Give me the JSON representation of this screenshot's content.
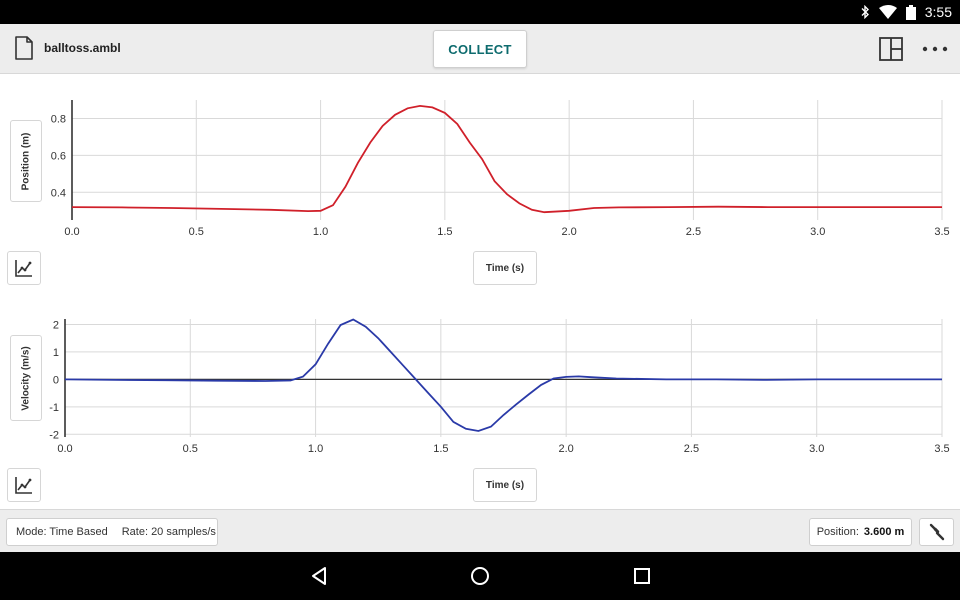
{
  "status_bar": {
    "time": "3:55",
    "icons": [
      "bluetooth-icon",
      "wifi-icon",
      "battery-icon"
    ]
  },
  "app_bar": {
    "file_name": "balltoss.ambl",
    "collect_label": "COLLECT",
    "icons": [
      "file-icon",
      "layout-icon",
      "more-options-icon"
    ]
  },
  "colors": {
    "position_series": "#d0202a",
    "velocity_series": "#2a3aa8",
    "accent": "#0d6b6e"
  },
  "chart_data": [
    {
      "type": "line",
      "ylabel": "Position (m)",
      "xlabel": "Time (s)",
      "xlim": [
        0.0,
        3.5
      ],
      "ylim": [
        0.25,
        0.9
      ],
      "x_ticks": [
        "0.0",
        "0.5",
        "1.0",
        "1.5",
        "2.0",
        "2.5",
        "3.0",
        "3.5"
      ],
      "y_ticks": [
        "0.4",
        "0.6",
        "0.8"
      ],
      "grid": true,
      "series": [
        {
          "color": "#d0202a",
          "x": [
            0.0,
            0.2,
            0.4,
            0.6,
            0.8,
            0.95,
            1.0,
            1.05,
            1.1,
            1.15,
            1.2,
            1.25,
            1.3,
            1.35,
            1.4,
            1.45,
            1.5,
            1.55,
            1.6,
            1.65,
            1.7,
            1.75,
            1.8,
            1.85,
            1.9,
            2.0,
            2.1,
            2.2,
            2.4,
            2.6,
            2.8,
            3.0,
            3.2,
            3.5
          ],
          "y": [
            0.32,
            0.318,
            0.315,
            0.31,
            0.305,
            0.298,
            0.3,
            0.33,
            0.43,
            0.56,
            0.67,
            0.76,
            0.82,
            0.855,
            0.868,
            0.86,
            0.83,
            0.77,
            0.67,
            0.58,
            0.46,
            0.39,
            0.34,
            0.305,
            0.292,
            0.3,
            0.315,
            0.318,
            0.32,
            0.322,
            0.32,
            0.32,
            0.32,
            0.32
          ]
        }
      ]
    },
    {
      "type": "line",
      "ylabel": "Velocity (m/s)",
      "xlabel": "Time (s)",
      "xlim": [
        0.0,
        3.5
      ],
      "ylim": [
        -2.1,
        2.2
      ],
      "x_ticks": [
        "0.0",
        "0.5",
        "1.0",
        "1.5",
        "2.0",
        "2.5",
        "3.0",
        "3.5"
      ],
      "y_ticks": [
        "2",
        "1",
        "0",
        "-1",
        "-2"
      ],
      "grid": true,
      "series": [
        {
          "color": "#2a3aa8",
          "x": [
            0.0,
            0.2,
            0.4,
            0.6,
            0.8,
            0.9,
            0.95,
            1.0,
            1.05,
            1.1,
            1.15,
            1.2,
            1.25,
            1.3,
            1.35,
            1.4,
            1.45,
            1.5,
            1.55,
            1.6,
            1.65,
            1.7,
            1.75,
            1.8,
            1.85,
            1.9,
            1.95,
            2.0,
            2.05,
            2.1,
            2.2,
            2.4,
            2.6,
            2.8,
            3.0,
            3.2,
            3.5
          ],
          "y": [
            0.0,
            -0.02,
            -0.03,
            -0.05,
            -0.06,
            -0.04,
            0.1,
            0.55,
            1.3,
            1.98,
            2.18,
            1.92,
            1.5,
            1.0,
            0.5,
            0.0,
            -0.5,
            -1.0,
            -1.55,
            -1.8,
            -1.88,
            -1.72,
            -1.3,
            -0.92,
            -0.55,
            -0.2,
            0.03,
            0.09,
            0.11,
            0.08,
            0.03,
            0.0,
            0.0,
            -0.02,
            0.0,
            0.0,
            0.0
          ]
        }
      ]
    }
  ],
  "graph_tools": {
    "icons": [
      "graph-tools-icon",
      "graph-tools-icon"
    ]
  },
  "bottom_bar": {
    "mode_text": "Mode: Time Based",
    "rate_text": "Rate: 20 samples/s",
    "position_label": "Position:",
    "position_value": "3.600 m",
    "icons": [
      "tools-icon"
    ]
  },
  "nav_bar": {
    "icons": [
      "back-icon",
      "home-icon",
      "recents-icon"
    ]
  }
}
